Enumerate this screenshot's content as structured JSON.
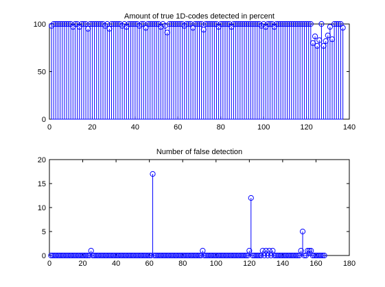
{
  "chart_data": [
    {
      "type": "stem",
      "title": "Amount of true 1D-codes detected in percent",
      "xlim": [
        0,
        140
      ],
      "ylim": [
        0,
        100
      ],
      "xticks": [
        "0",
        "20",
        "40",
        "60",
        "80",
        "100",
        "120",
        "140"
      ],
      "yticks": [
        "0",
        "50",
        "100"
      ],
      "color": "#0000ff",
      "x": [
        1,
        2,
        3,
        4,
        5,
        6,
        7,
        8,
        9,
        10,
        11,
        12,
        13,
        14,
        15,
        16,
        17,
        18,
        19,
        20,
        21,
        22,
        23,
        24,
        25,
        26,
        27,
        28,
        29,
        30,
        31,
        32,
        33,
        34,
        35,
        36,
        37,
        38,
        39,
        40,
        41,
        42,
        43,
        44,
        45,
        46,
        47,
        48,
        49,
        50,
        51,
        52,
        53,
        54,
        55,
        56,
        57,
        58,
        59,
        60,
        61,
        62,
        63,
        64,
        65,
        66,
        67,
        68,
        69,
        70,
        71,
        72,
        73,
        74,
        75,
        76,
        77,
        78,
        79,
        80,
        81,
        82,
        83,
        84,
        85,
        86,
        87,
        88,
        89,
        90,
        91,
        92,
        93,
        94,
        95,
        96,
        97,
        98,
        99,
        100,
        101,
        102,
        103,
        104,
        105,
        106,
        107,
        108,
        109,
        110,
        111,
        112,
        113,
        114,
        115,
        116,
        117,
        118,
        119,
        120,
        121,
        122,
        123,
        124,
        125,
        126,
        127,
        128,
        129,
        130,
        131,
        132,
        133,
        134,
        135,
        136,
        137
      ],
      "y": [
        98,
        100,
        100,
        100,
        100,
        100,
        100,
        100,
        100,
        100,
        97,
        100,
        100,
        97,
        100,
        100,
        100,
        95,
        100,
        100,
        100,
        100,
        100,
        100,
        100,
        98,
        100,
        95,
        100,
        100,
        100,
        100,
        100,
        98,
        100,
        97,
        100,
        100,
        100,
        100,
        100,
        98,
        100,
        100,
        96,
        100,
        100,
        100,
        100,
        100,
        100,
        97,
        100,
        98,
        91,
        100,
        100,
        100,
        100,
        100,
        100,
        100,
        98,
        100,
        100,
        100,
        96,
        100,
        100,
        100,
        100,
        94,
        100,
        100,
        100,
        100,
        100,
        100,
        97,
        100,
        100,
        100,
        100,
        100,
        97,
        100,
        100,
        100,
        100,
        100,
        100,
        100,
        100,
        100,
        100,
        100,
        100,
        100,
        98,
        100,
        97,
        100,
        100,
        100,
        97,
        100,
        100,
        100,
        100,
        100,
        100,
        100,
        100,
        100,
        100,
        100,
        100,
        100,
        100,
        100,
        100,
        100,
        80,
        87,
        77,
        83,
        100,
        77,
        82,
        88,
        97,
        84,
        100,
        100,
        100,
        100,
        96
      ]
    },
    {
      "type": "stem",
      "title": "Number of false detection",
      "xlim": [
        0,
        180
      ],
      "ylim": [
        0,
        20
      ],
      "xticks": [
        "0",
        "20",
        "40",
        "60",
        "80",
        "100",
        "120",
        "140",
        "160",
        "180"
      ],
      "yticks": [
        "0",
        "5",
        "10",
        "15",
        "20"
      ],
      "color": "#0000ff",
      "x": [
        1,
        2,
        3,
        4,
        5,
        6,
        7,
        8,
        9,
        10,
        11,
        12,
        13,
        14,
        15,
        16,
        17,
        18,
        19,
        20,
        21,
        22,
        23,
        24,
        25,
        26,
        27,
        28,
        29,
        30,
        31,
        32,
        33,
        34,
        35,
        36,
        37,
        38,
        39,
        40,
        41,
        42,
        43,
        44,
        45,
        46,
        47,
        48,
        49,
        50,
        51,
        52,
        53,
        54,
        55,
        56,
        57,
        58,
        59,
        60,
        61,
        62,
        63,
        64,
        65,
        66,
        67,
        68,
        69,
        70,
        71,
        72,
        73,
        74,
        75,
        76,
        77,
        78,
        79,
        80,
        81,
        82,
        83,
        84,
        85,
        86,
        87,
        88,
        89,
        90,
        91,
        92,
        93,
        94,
        95,
        96,
        97,
        98,
        99,
        100,
        101,
        102,
        103,
        104,
        105,
        106,
        107,
        108,
        109,
        110,
        111,
        112,
        113,
        114,
        115,
        116,
        117,
        118,
        119,
        120,
        121,
        122,
        123,
        124,
        125,
        126,
        127,
        128,
        129,
        130,
        131,
        132,
        133,
        134,
        135,
        136,
        137,
        138,
        139,
        140,
        141,
        142,
        143,
        144,
        145,
        146,
        147,
        148,
        149,
        150,
        151,
        152,
        153,
        154,
        155,
        156,
        157,
        158,
        159,
        160,
        161,
        162,
        163,
        164,
        165
      ],
      "y": [
        0,
        0,
        0,
        0,
        0,
        0,
        0,
        0,
        0,
        0,
        0,
        0,
        0,
        0,
        0,
        0,
        0,
        0,
        0,
        0,
        0,
        0,
        0,
        0,
        1,
        0,
        0,
        0,
        0,
        0,
        0,
        0,
        0,
        0,
        0,
        0,
        0,
        0,
        0,
        0,
        0,
        0,
        0,
        0,
        0,
        0,
        0,
        0,
        0,
        0,
        0,
        0,
        0,
        0,
        0,
        0,
        0,
        0,
        0,
        0,
        0,
        17,
        0,
        0,
        0,
        0,
        0,
        0,
        0,
        0,
        0,
        0,
        0,
        0,
        0,
        0,
        0,
        0,
        0,
        0,
        0,
        0,
        0,
        0,
        0,
        0,
        0,
        0,
        0,
        0,
        0,
        1,
        0,
        0,
        0,
        0,
        0,
        0,
        0,
        0,
        0,
        0,
        0,
        0,
        0,
        0,
        0,
        0,
        0,
        0,
        0,
        0,
        0,
        0,
        0,
        0,
        0,
        0,
        0,
        1,
        12,
        0,
        0,
        0,
        0,
        0,
        0,
        1,
        0,
        1,
        0,
        1,
        0,
        1,
        0,
        0,
        0,
        0,
        0,
        0,
        0,
        0,
        0,
        0,
        0,
        0,
        0,
        0,
        0,
        0,
        1,
        5,
        0,
        0,
        1,
        1,
        1,
        0,
        0,
        0,
        0,
        0,
        0,
        0,
        0
      ]
    }
  ]
}
